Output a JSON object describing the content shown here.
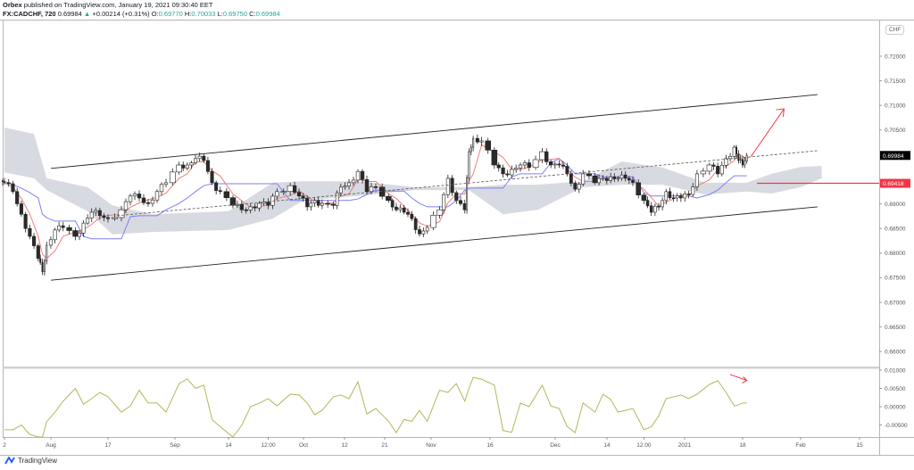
{
  "header": {
    "publisher": "Orbex",
    "published_text": "published on TradingView.com, January 19, 2021 09:30:40 EET",
    "symbol": "FX:CADCHF, 720",
    "last": "0.69984",
    "change": "+0.00214 (+0.31%)",
    "o_label": "O:",
    "o": "0.69770",
    "h_label": "H:",
    "h": "0.70033",
    "l_label": "L:",
    "l": "0.69750",
    "c_label": "C:",
    "c": "0.69984"
  },
  "price_axis": {
    "currency_button": "CHF",
    "ticks": [
      "0.72000",
      "0.71500",
      "0.71000",
      "0.70500",
      "0.69000",
      "0.68500",
      "0.68000",
      "0.67500",
      "0.67000",
      "0.66500",
      "0.66000"
    ],
    "last_price_label": "0.69984",
    "level_label": "0.69418"
  },
  "oscillator_axis": {
    "ticks": [
      "0.01000",
      "0.00500",
      "0.00000",
      "-0.00500"
    ]
  },
  "time_axis": {
    "ticks": [
      {
        "label": "2",
        "date": "2020-07-23"
      },
      {
        "label": "Aug",
        "date": "2020-08-03"
      },
      {
        "label": "17",
        "date": "2020-08-17"
      },
      {
        "label": "Sep",
        "date": "2020-09-01"
      },
      {
        "label": "14",
        "date": "2020-09-14"
      },
      {
        "label": "12:00",
        "date": "2020-09-23"
      },
      {
        "label": "Oct",
        "date": "2020-10-01"
      },
      {
        "label": "12",
        "date": "2020-10-12"
      },
      {
        "label": "21",
        "date": "2020-10-21"
      },
      {
        "label": "Nov",
        "date": "2020-11-02"
      },
      {
        "label": "16",
        "date": "2020-11-16"
      },
      {
        "label": "Dec",
        "date": "2020-12-01"
      },
      {
        "label": "14",
        "date": "2020-12-14"
      },
      {
        "label": "12:00",
        "date": "2020-12-24"
      },
      {
        "label": "2021",
        "date": "2021-01-04"
      },
      {
        "label": "18",
        "date": "2021-01-18"
      },
      {
        "label": "Feb",
        "date": "2021-02-01"
      },
      {
        "label": "15",
        "date": "2021-02-15"
      }
    ]
  },
  "footer": {
    "brand": "TradingView"
  },
  "chart_data": {
    "type": "candlestick",
    "symbol": "FX:CADCHF",
    "interval": "720",
    "ylim": [
      0.655,
      0.7235
    ],
    "oscillator_ylim": [
      -0.0085,
      0.0105
    ],
    "grid": false,
    "x": [
      "2020-07-23",
      "2020-07-25",
      "2020-07-27",
      "2020-07-29",
      "2020-07-31",
      "2020-08-01",
      "2020-08-02",
      "2020-08-04",
      "2020-08-06",
      "2020-08-09",
      "2020-08-11",
      "2020-08-13",
      "2020-08-15",
      "2020-08-17",
      "2020-08-20",
      "2020-08-22",
      "2020-08-24",
      "2020-08-26",
      "2020-08-28",
      "2020-08-30",
      "2020-09-02",
      "2020-09-04",
      "2020-09-06",
      "2020-09-08",
      "2020-09-10",
      "2020-09-12",
      "2020-09-15",
      "2020-09-17",
      "2020-09-19",
      "2020-09-21",
      "2020-09-23",
      "2020-09-25",
      "2020-09-28",
      "2020-09-30",
      "2020-10-02",
      "2020-10-04",
      "2020-10-06",
      "2020-10-09",
      "2020-10-11",
      "2020-10-13",
      "2020-10-15",
      "2020-10-17",
      "2020-10-19",
      "2020-10-22",
      "2020-10-24",
      "2020-10-26",
      "2020-10-28",
      "2020-10-30",
      "2020-11-01",
      "2020-11-04",
      "2020-11-06",
      "2020-11-08",
      "2020-11-10",
      "2020-11-11",
      "2020-11-12",
      "2020-11-14",
      "2020-11-17",
      "2020-11-19",
      "2020-11-21",
      "2020-11-23",
      "2020-11-25",
      "2020-11-28",
      "2020-11-30",
      "2020-12-02",
      "2020-12-04",
      "2020-12-06",
      "2020-12-08",
      "2020-12-11",
      "2020-12-13",
      "2020-12-15",
      "2020-12-17",
      "2020-12-19",
      "2020-12-21",
      "2020-12-24",
      "2020-12-26",
      "2020-12-28",
      "2020-12-30",
      "2021-01-01",
      "2021-01-03",
      "2021-01-05",
      "2021-01-07",
      "2021-01-10",
      "2021-01-12",
      "2021-01-14",
      "2021-01-16",
      "2021-01-17",
      "2021-01-18",
      "2021-01-19"
    ],
    "close": [
      0.6943,
      0.6925,
      0.6879,
      0.6834,
      0.6789,
      0.6762,
      0.6816,
      0.6847,
      0.6852,
      0.6834,
      0.6861,
      0.6883,
      0.6876,
      0.687,
      0.6888,
      0.6916,
      0.6912,
      0.6901,
      0.6925,
      0.6943,
      0.6979,
      0.6979,
      0.6992,
      0.6988,
      0.6943,
      0.6925,
      0.6897,
      0.6888,
      0.6894,
      0.6901,
      0.6897,
      0.6925,
      0.6937,
      0.6916,
      0.6894,
      0.6907,
      0.6901,
      0.6897,
      0.6934,
      0.6943,
      0.6966,
      0.6925,
      0.6934,
      0.6907,
      0.6888,
      0.6883,
      0.687,
      0.6839,
      0.6852,
      0.6888,
      0.6952,
      0.6907,
      0.6888,
      0.7006,
      0.7033,
      0.7028,
      0.6979,
      0.6961,
      0.697,
      0.6979,
      0.6974,
      0.7006,
      0.6979,
      0.6979,
      0.6961,
      0.693,
      0.6961,
      0.6943,
      0.6952,
      0.6955,
      0.6952,
      0.6952,
      0.6943,
      0.6907,
      0.6883,
      0.6894,
      0.6925,
      0.6912,
      0.6912,
      0.6919,
      0.6961,
      0.6979,
      0.6961,
      0.6992,
      0.7015,
      0.6988,
      0.6979,
      0.6998
    ],
    "kijun": [
      0.6946,
      0.6939,
      0.6932,
      0.6923,
      0.6912,
      0.6879,
      0.6872,
      0.6865,
      0.6865,
      0.6865,
      0.6834,
      0.6829,
      0.6829,
      0.6829,
      0.6829,
      0.6874,
      0.6876,
      0.6876,
      0.6876,
      0.6888,
      0.6901,
      0.6912,
      0.6925,
      0.6937,
      0.6941,
      0.6941,
      0.6941,
      0.6941,
      0.6941,
      0.6941,
      0.6941,
      0.6941,
      0.6907,
      0.6907,
      0.6907,
      0.6907,
      0.6907,
      0.6907,
      0.6907,
      0.6907,
      0.691,
      0.6919,
      0.6928,
      0.6926,
      0.6926,
      0.6926,
      0.6912,
      0.6901,
      0.6894,
      0.6894,
      0.6894,
      0.6907,
      0.6928,
      0.6932,
      0.6932,
      0.6932,
      0.6932,
      0.6932,
      0.6955,
      0.6961,
      0.6961,
      0.6961,
      0.6983,
      0.6992,
      0.6979,
      0.6961,
      0.6961,
      0.6961,
      0.6955,
      0.6955,
      0.6955,
      0.6955,
      0.6955,
      0.6923,
      0.6916,
      0.6916,
      0.6916,
      0.6916,
      0.6916,
      0.6916,
      0.6912,
      0.6919,
      0.6928,
      0.6943,
      0.6957,
      0.6957,
      0.6957,
      0.6957
    ],
    "oscillator": [
      -0.0063,
      -0.0063,
      -0.005,
      -0.0076,
      -0.0085,
      -0.0085,
      -0.0041,
      -0.0015,
      0.0015,
      0.005,
      0.0007,
      0.0022,
      0.0039,
      0.0027,
      -0.0015,
      0.0002,
      0.0045,
      0.001,
      0.001,
      -0.0015,
      0.0063,
      0.0076,
      0.005,
      0.0059,
      -0.0035,
      -0.0055,
      -0.0085,
      -0.0051,
      0.0,
      0.001,
      0.0022,
      0.0002,
      0.0034,
      0.0032,
      0.001,
      -0.0022,
      -0.001,
      0.0027,
      0.0032,
      0.0022,
      0.0068,
      -0.002,
      -0.0005,
      -0.004,
      -0.0071,
      -0.0035,
      -0.004,
      -0.001,
      -0.004,
      0.0045,
      0.0039,
      0.0063,
      0.0015,
      0.005,
      0.008,
      0.0075,
      0.0059,
      -0.0065,
      -0.007,
      0.001,
      0.0,
      0.0059,
      0.0002,
      -0.0005,
      -0.0054,
      -0.0071,
      0.001,
      -0.0015,
      0.0034,
      0.002,
      -0.0015,
      -0.001,
      -0.0005,
      -0.0063,
      -0.0055,
      -0.0025,
      0.0022,
      0.0027,
      0.0032,
      0.0022,
      0.0034,
      0.0061,
      0.0071,
      0.0039,
      0.0002,
      0.0005,
      0.001,
      0.001
    ],
    "cloud": {
      "x": [
        "2020-07-23",
        "2020-07-30",
        "2020-08-02",
        "2020-08-12",
        "2020-08-18",
        "2020-08-27",
        "2020-09-14",
        "2020-09-24",
        "2020-10-01",
        "2020-10-15",
        "2020-10-29",
        "2020-11-11",
        "2020-11-19",
        "2020-11-27",
        "2020-12-08",
        "2020-12-18",
        "2020-12-29",
        "2021-01-09",
        "2021-01-19",
        "2021-01-25",
        "2021-02-01",
        "2021-02-06"
      ],
      "upper": [
        0.7055,
        0.7042,
        0.6952,
        0.6934,
        0.6897,
        0.6879,
        0.6885,
        0.6943,
        0.6946,
        0.6946,
        0.6934,
        0.6934,
        0.6939,
        0.6939,
        0.6946,
        0.6986,
        0.6974,
        0.6943,
        0.6943,
        0.6961,
        0.6975,
        0.6977
      ],
      "lower": [
        0.6964,
        0.6952,
        0.6928,
        0.6885,
        0.6838,
        0.6843,
        0.6847,
        0.687,
        0.6907,
        0.6916,
        0.6928,
        0.6928,
        0.6879,
        0.6888,
        0.6934,
        0.6939,
        0.6939,
        0.6919,
        0.6925,
        0.6921,
        0.6934,
        0.6952
      ]
    },
    "annotations": {
      "channel_upper": [
        [
          "2020-08-03",
          0.6972
        ],
        [
          "2021-02-05",
          0.7122
        ]
      ],
      "channel_lower": [
        [
          "2020-08-03",
          0.6745
        ],
        [
          "2021-02-05",
          0.6894
        ]
      ],
      "channel_mid_dashed": [
        [
          "2020-08-19",
          0.6876
        ],
        [
          "2021-02-05",
          0.7008
        ]
      ],
      "up_arrow": [
        [
          "2021-01-20",
          0.6996
        ],
        [
          "2021-01-28",
          0.7093
        ]
      ],
      "osc_arrow": [
        [
          "2021-01-15",
          0.0088
        ],
        [
          "2021-01-19",
          0.0072
        ]
      ],
      "horizontal_level": 0.69418,
      "last_price": 0.69984
    },
    "colors": {
      "candle_up": "#ffffff",
      "candle_down": "#2b2b2b",
      "candle_border": "#222222",
      "tenkan": "#f07d7d",
      "kijun": "#7f7ff5",
      "cloud": "#d1d4dc",
      "oscillator": "#b5b55a",
      "annotation_red": "#f23645",
      "channel": "#222222",
      "last_price_bg": "#000000"
    }
  }
}
